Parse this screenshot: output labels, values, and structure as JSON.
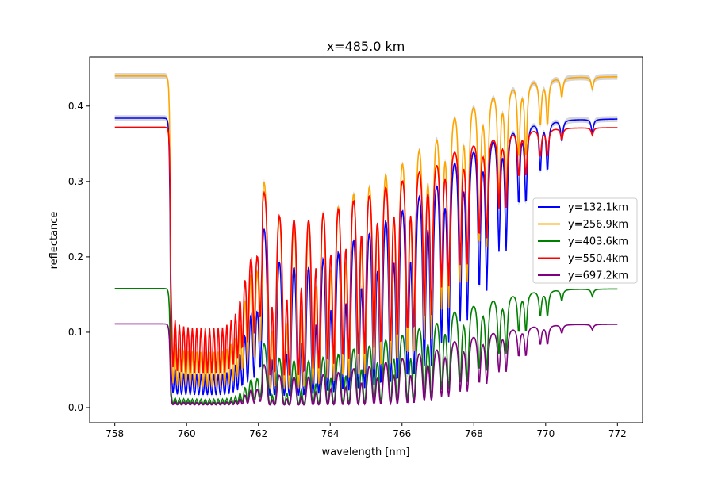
{
  "chart_data": {
    "type": "line",
    "title": "x=485.0 km",
    "xlabel": "wavelength [nm]",
    "ylabel": "reflectance",
    "xlim": [
      757.3,
      772.7
    ],
    "ylim": [
      -0.02,
      0.465
    ],
    "xticks": [
      758,
      760,
      762,
      764,
      766,
      768,
      770,
      772
    ],
    "xtick_labels": [
      "758",
      "760",
      "762",
      "764",
      "766",
      "768",
      "770",
      "772"
    ],
    "yticks": [
      0.0,
      0.1,
      0.2,
      0.3,
      0.4
    ],
    "ytick_labels": [
      "0.0",
      "0.1",
      "0.2",
      "0.3",
      "0.4"
    ],
    "legend_position": "center-right",
    "x_range": [
      758,
      772
    ],
    "x_step": 0.02,
    "series": [
      {
        "name": "y=132.1km",
        "color": "#0000ff",
        "continuum": 0.384,
        "absorption_scale": 1.0,
        "uncertainty_band": true
      },
      {
        "name": "y=256.9km",
        "color": "#ffa500",
        "continuum": 0.44,
        "absorption_scale": 0.8,
        "uncertainty_band": true
      },
      {
        "name": "y=403.6km",
        "color": "#008000",
        "continuum": 0.158,
        "absorption_scale": 1.3,
        "uncertainty_band": false
      },
      {
        "name": "y=550.4km",
        "color": "#ff0000",
        "continuum": 0.372,
        "absorption_scale": 0.55,
        "uncertainty_band": false
      },
      {
        "name": "y=697.2km",
        "color": "#800080",
        "continuum": 0.111,
        "absorption_scale": 1.4,
        "uncertainty_band": false
      }
    ],
    "band_head_nm": 759.55,
    "absorption_lines_nm_depth": [
      [
        759.62,
        3
      ],
      [
        759.74,
        3
      ],
      [
        759.86,
        3
      ],
      [
        759.98,
        3
      ],
      [
        760.1,
        3
      ],
      [
        760.22,
        3
      ],
      [
        760.34,
        3
      ],
      [
        760.46,
        3
      ],
      [
        760.58,
        3
      ],
      [
        760.7,
        3
      ],
      [
        760.82,
        3
      ],
      [
        760.94,
        3
      ],
      [
        761.06,
        3
      ],
      [
        761.18,
        2.8
      ],
      [
        761.3,
        2.6
      ],
      [
        761.42,
        2.4
      ],
      [
        761.55,
        2.2
      ],
      [
        761.7,
        2.0
      ],
      [
        761.88,
        1.8
      ],
      [
        762.05,
        1.5
      ],
      [
        762.32,
        4
      ],
      [
        762.45,
        4
      ],
      [
        762.72,
        4
      ],
      [
        762.86,
        4
      ],
      [
        763.12,
        4
      ],
      [
        763.27,
        4
      ],
      [
        763.52,
        3.6
      ],
      [
        763.68,
        3.6
      ],
      [
        763.93,
        3.4
      ],
      [
        764.1,
        3.4
      ],
      [
        764.35,
        3.2
      ],
      [
        764.52,
        3.2
      ],
      [
        764.78,
        3
      ],
      [
        764.96,
        3
      ],
      [
        765.22,
        2.8
      ],
      [
        765.41,
        2.8
      ],
      [
        765.68,
        2.6
      ],
      [
        765.87,
        2.6
      ],
      [
        766.15,
        2.4
      ],
      [
        766.33,
        2.4
      ],
      [
        766.62,
        2
      ],
      [
        766.82,
        2
      ],
      [
        767.1,
        1.5
      ],
      [
        767.3,
        1.5
      ],
      [
        767.62,
        1.2
      ],
      [
        767.82,
        1.2
      ],
      [
        768.15,
        0.9
      ],
      [
        768.36,
        0.9
      ],
      [
        768.7,
        0.6
      ],
      [
        768.9,
        0.6
      ],
      [
        769.25,
        0.35
      ],
      [
        769.45,
        0.35
      ],
      [
        769.85,
        0.2
      ],
      [
        770.05,
        0.2
      ],
      [
        770.45,
        0.08
      ],
      [
        771.3,
        0.05
      ]
    ]
  }
}
